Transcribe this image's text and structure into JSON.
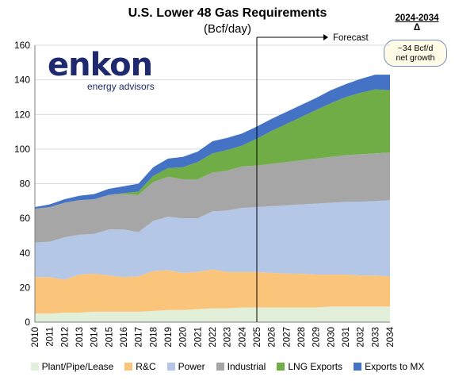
{
  "chart_data": {
    "type": "area",
    "title": "U.S. Lower 48 Gas Requirements",
    "subtitle": "(Bcf/day)",
    "x": [
      "2010",
      "2011",
      "2012",
      "2013",
      "2014",
      "2015",
      "2016",
      "2017",
      "2018",
      "2019",
      "2020",
      "2021",
      "2022",
      "2023",
      "2024",
      "2025",
      "2026",
      "2027",
      "2028",
      "2029",
      "2030",
      "2031",
      "2032",
      "2033",
      "2034"
    ],
    "ylim": [
      0,
      160
    ],
    "yticks": [
      0,
      20,
      40,
      60,
      80,
      100,
      120,
      140,
      160
    ],
    "grid": "horizontal",
    "legend_position": "bottom",
    "series": [
      {
        "name": "Plant/Pipe/Lease",
        "color": "#e2efd9",
        "values": [
          5,
          5,
          5.5,
          5.5,
          6,
          6,
          6,
          6,
          6.5,
          7,
          7,
          7.5,
          8,
          8,
          8.5,
          8.5,
          8.5,
          8.5,
          8.5,
          8.5,
          9,
          9,
          9,
          9,
          9
        ]
      },
      {
        "name": "R&C",
        "color": "#fbc47b",
        "values": [
          21,
          21,
          19,
          22,
          22,
          21,
          20,
          20.5,
          23,
          23,
          21.5,
          21.5,
          22.5,
          21,
          20.5,
          20.5,
          20,
          19.5,
          19.5,
          19,
          18.5,
          18.5,
          18,
          18,
          17.5
        ]
      },
      {
        "name": "Power",
        "color": "#b4c7e7",
        "values": [
          20,
          20.5,
          24.5,
          23,
          23,
          26.5,
          27.5,
          25.5,
          29,
          31,
          31.5,
          31,
          33.5,
          35.5,
          37,
          37.5,
          38.5,
          39.5,
          40,
          41,
          41.5,
          42,
          42.5,
          43,
          44
        ]
      },
      {
        "name": "Industrial",
        "color": "#a6a6a6",
        "values": [
          19.5,
          20,
          20,
          20,
          20,
          20,
          20.5,
          21.5,
          22.5,
          23,
          22.5,
          22.5,
          22.5,
          23,
          24,
          24,
          24.5,
          25,
          25.5,
          26,
          26.5,
          27,
          27.5,
          27.5,
          27.5
        ]
      },
      {
        "name": "LNG Exports",
        "color": "#70ad47",
        "values": [
          0,
          0,
          0,
          0,
          0,
          0,
          0.5,
          2,
          3.5,
          5,
          7,
          10,
          11,
          12,
          12,
          15.5,
          19,
          22,
          25,
          28,
          31,
          33.5,
          35.5,
          37,
          36
        ]
      },
      {
        "name": "Exports to MX",
        "color": "#4472c4",
        "values": [
          1,
          1.5,
          2,
          2.5,
          3,
          3.5,
          4,
          4.5,
          5,
          5.5,
          6,
          6,
          7,
          7,
          7,
          7,
          7,
          7,
          7,
          7,
          7.5,
          7.5,
          8,
          8.5,
          9
        ]
      }
    ],
    "annotations": {
      "forecast_label": "Forecast",
      "forecast_start": "2025"
    }
  },
  "delta": {
    "heading": "2024-2034",
    "symbol": "Δ",
    "box_line1": "~34 Bcf/d",
    "box_line2": "net growth"
  },
  "logo": {
    "name": "enkon",
    "tagline": "energy advisors"
  }
}
